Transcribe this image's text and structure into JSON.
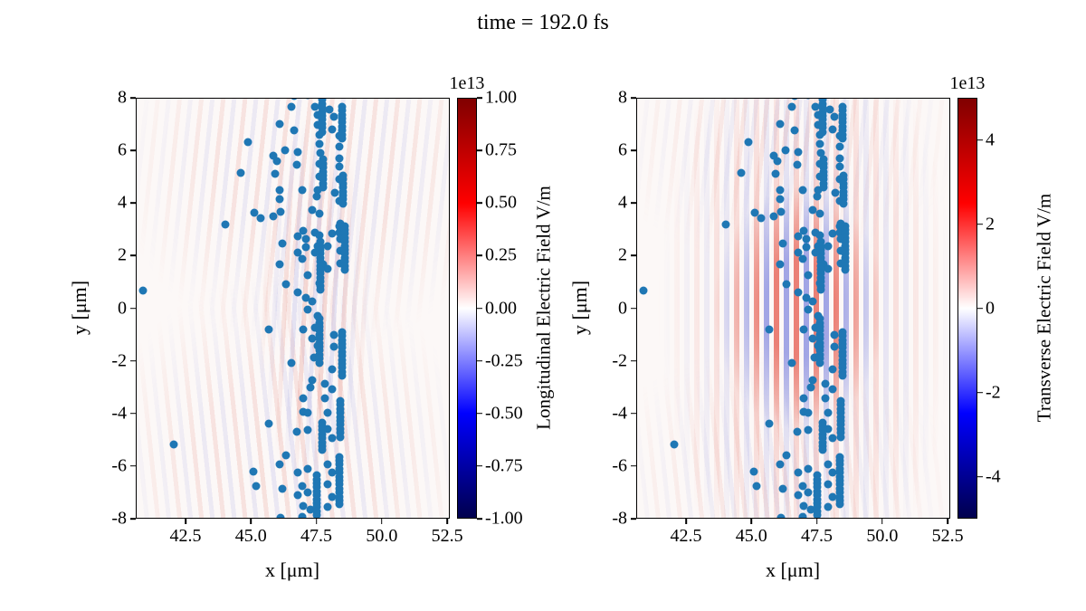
{
  "title": "time = 192.0 fs",
  "colors": {
    "marker": "#1f77b4",
    "colormap_top": "#800000",
    "colormap_positive": "#ff0000",
    "colormap_zero": "#ffffff",
    "colormap_negative": "#0000ff",
    "colormap_bottom": "#00004d"
  },
  "chart_data": {
    "type": "scatter",
    "layout": "1 row x 2 columns",
    "suptitle": "time = 192.0 fs",
    "particles": {
      "name": "macroparticle positions (identical in both panels)",
      "marker_color": "#1f77b4",
      "points": [
        [
          40.95,
          0.65
        ],
        [
          42.1,
          -5.15
        ],
        [
          44.05,
          3.15
        ],
        [
          44.65,
          5.1
        ],
        [
          44.9,
          6.25
        ],
        [
          45.15,
          3.6
        ],
        [
          45.4,
          3.4
        ],
        [
          45.85,
          3.45
        ],
        [
          46.15,
          3.65
        ],
        [
          45.85,
          5.75
        ],
        [
          46.0,
          5.55
        ],
        [
          46.3,
          5.95
        ],
        [
          46.1,
          6.95
        ],
        [
          46.65,
          6.7
        ],
        [
          46.65,
          8.0
        ],
        [
          46.55,
          7.6
        ],
        [
          47.15,
          8.05
        ],
        [
          47.45,
          7.6
        ],
        [
          48.0,
          7.5
        ],
        [
          47.55,
          7.3
        ],
        [
          48.15,
          7.2
        ],
        [
          47.55,
          6.9
        ],
        [
          48.1,
          6.75
        ],
        [
          47.6,
          6.55
        ],
        [
          48.35,
          6.5
        ],
        [
          47.6,
          6.2
        ],
        [
          48.35,
          6.1
        ],
        [
          46.8,
          5.9
        ],
        [
          47.65,
          5.85
        ],
        [
          48.35,
          5.65
        ],
        [
          46.75,
          5.4
        ],
        [
          47.6,
          5.45
        ],
        [
          48.35,
          5.35
        ],
        [
          45.95,
          5.05
        ],
        [
          47.6,
          4.95
        ],
        [
          48.35,
          4.85
        ],
        [
          46.1,
          4.45
        ],
        [
          46.95,
          4.45
        ],
        [
          47.55,
          4.45
        ],
        [
          48.2,
          4.35
        ],
        [
          46.1,
          4.1
        ],
        [
          47.5,
          4.2
        ],
        [
          48.35,
          4.05
        ],
        [
          47.35,
          3.7
        ],
        [
          47.6,
          3.55
        ],
        [
          48.4,
          3.2
        ],
        [
          47.0,
          2.9
        ],
        [
          47.45,
          2.85
        ],
        [
          48.35,
          3.1
        ],
        [
          46.8,
          2.7
        ],
        [
          47.1,
          2.6
        ],
        [
          47.6,
          2.75
        ],
        [
          48.1,
          2.8
        ],
        [
          48.35,
          2.85
        ],
        [
          46.2,
          2.45
        ],
        [
          47.55,
          2.35
        ],
        [
          47.9,
          2.35
        ],
        [
          48.4,
          2.6
        ],
        [
          47.1,
          2.3
        ],
        [
          46.8,
          2.1
        ],
        [
          47.45,
          2.1
        ],
        [
          48.4,
          2.15
        ],
        [
          46.1,
          1.65
        ],
        [
          46.95,
          1.85
        ],
        [
          47.15,
          1.25
        ],
        [
          47.75,
          1.65
        ],
        [
          47.9,
          1.5
        ],
        [
          48.4,
          1.7
        ],
        [
          46.35,
          0.9
        ],
        [
          46.8,
          0.6
        ],
        [
          47.1,
          0.4
        ],
        [
          47.6,
          0.95
        ],
        [
          47.35,
          0.25
        ],
        [
          47.15,
          -0.05
        ],
        [
          47.55,
          -0.3
        ],
        [
          45.7,
          -0.8
        ],
        [
          47.0,
          -0.8
        ],
        [
          47.45,
          -0.75
        ],
        [
          48.15,
          -1.0
        ],
        [
          47.35,
          -1.15
        ],
        [
          47.55,
          -1.4
        ],
        [
          48.15,
          -1.45
        ],
        [
          46.55,
          -2.05
        ],
        [
          47.4,
          -1.85
        ],
        [
          48.1,
          -2.3
        ],
        [
          47.35,
          -2.7
        ],
        [
          47.8,
          -2.85
        ],
        [
          47.25,
          -3.0
        ],
        [
          48.1,
          -3.05
        ],
        [
          47.0,
          -3.4
        ],
        [
          47.8,
          -3.4
        ],
        [
          47.0,
          -3.9
        ],
        [
          47.15,
          -3.95
        ],
        [
          47.9,
          -3.95
        ],
        [
          45.7,
          -4.35
        ],
        [
          46.75,
          -4.65
        ],
        [
          47.15,
          -4.6
        ],
        [
          47.9,
          -4.55
        ],
        [
          48.1,
          -4.9
        ],
        [
          46.35,
          -5.55
        ],
        [
          46.1,
          -5.9
        ],
        [
          47.15,
          -6.05
        ],
        [
          47.9,
          -5.9
        ],
        [
          45.1,
          -6.15
        ],
        [
          46.8,
          -6.2
        ],
        [
          48.1,
          -6.2
        ],
        [
          45.2,
          -6.7
        ],
        [
          46.2,
          -6.8
        ],
        [
          46.95,
          -6.7
        ],
        [
          47.9,
          -6.65
        ],
        [
          46.8,
          -7.05
        ],
        [
          47.15,
          -6.95
        ],
        [
          48.1,
          -7.1
        ],
        [
          47.0,
          -7.45
        ],
        [
          47.25,
          -7.6
        ],
        [
          47.9,
          -7.5
        ],
        [
          46.95,
          -7.85
        ],
        [
          46.15,
          -7.9
        ],
        [
          48.45,
          7.6
        ],
        [
          48.45,
          7.45
        ],
        [
          48.45,
          7.3
        ],
        [
          48.45,
          7.15
        ],
        [
          48.45,
          7.0
        ],
        [
          48.45,
          6.85
        ],
        [
          48.45,
          6.7
        ],
        [
          48.45,
          6.55
        ],
        [
          48.45,
          6.4
        ],
        [
          48.5,
          5.0
        ],
        [
          48.5,
          4.85
        ],
        [
          48.5,
          4.7
        ],
        [
          48.5,
          4.55
        ],
        [
          48.5,
          4.4
        ],
        [
          48.5,
          4.25
        ],
        [
          48.5,
          4.1
        ],
        [
          48.5,
          3.95
        ],
        [
          48.55,
          3.1
        ],
        [
          48.55,
          2.95
        ],
        [
          48.55,
          2.8
        ],
        [
          48.55,
          2.65
        ],
        [
          48.55,
          2.5
        ],
        [
          48.55,
          2.35
        ],
        [
          48.55,
          2.2
        ],
        [
          48.55,
          2.05
        ],
        [
          48.55,
          1.9
        ],
        [
          48.55,
          1.75
        ],
        [
          48.55,
          1.6
        ],
        [
          48.55,
          1.45
        ],
        [
          48.45,
          -0.9
        ],
        [
          48.45,
          -1.05
        ],
        [
          48.45,
          -1.2
        ],
        [
          48.45,
          -1.35
        ],
        [
          48.45,
          -1.5
        ],
        [
          48.45,
          -1.65
        ],
        [
          48.45,
          -1.8
        ],
        [
          48.45,
          -1.95
        ],
        [
          48.45,
          -2.1
        ],
        [
          48.45,
          -2.25
        ],
        [
          48.45,
          -2.4
        ],
        [
          48.45,
          -2.55
        ],
        [
          48.4,
          -3.5
        ],
        [
          48.4,
          -3.65
        ],
        [
          48.4,
          -3.8
        ],
        [
          48.4,
          -3.95
        ],
        [
          48.4,
          -4.1
        ],
        [
          48.4,
          -4.25
        ],
        [
          48.4,
          -4.4
        ],
        [
          48.4,
          -4.55
        ],
        [
          48.4,
          -4.7
        ],
        [
          48.4,
          -4.85
        ],
        [
          48.35,
          -5.6
        ],
        [
          48.35,
          -5.75
        ],
        [
          48.35,
          -5.9
        ],
        [
          48.35,
          -6.05
        ],
        [
          48.35,
          -6.2
        ],
        [
          48.35,
          -6.35
        ],
        [
          48.35,
          -6.5
        ],
        [
          48.35,
          -6.65
        ],
        [
          48.35,
          -6.8
        ],
        [
          48.35,
          -6.95
        ],
        [
          48.35,
          -7.1
        ],
        [
          48.35,
          -7.25
        ],
        [
          48.35,
          -7.4
        ],
        [
          47.7,
          8.0
        ],
        [
          47.7,
          7.85
        ],
        [
          47.7,
          7.7
        ],
        [
          47.7,
          7.55
        ],
        [
          47.7,
          7.4
        ],
        [
          47.7,
          7.25
        ],
        [
          47.7,
          7.1
        ],
        [
          47.7,
          6.95
        ],
        [
          47.7,
          6.8
        ],
        [
          47.7,
          6.65
        ],
        [
          47.75,
          5.6
        ],
        [
          47.75,
          5.45
        ],
        [
          47.75,
          5.3
        ],
        [
          47.75,
          5.15
        ],
        [
          47.75,
          5.0
        ],
        [
          47.75,
          4.85
        ],
        [
          47.75,
          4.7
        ],
        [
          47.75,
          4.55
        ],
        [
          47.65,
          2.5
        ],
        [
          47.65,
          2.35
        ],
        [
          47.65,
          2.2
        ],
        [
          47.65,
          2.05
        ],
        [
          47.65,
          1.9
        ],
        [
          47.65,
          1.75
        ],
        [
          47.65,
          1.6
        ],
        [
          47.65,
          1.45
        ],
        [
          47.65,
          1.3
        ],
        [
          47.65,
          1.15
        ],
        [
          47.65,
          1.0
        ],
        [
          47.65,
          0.85
        ],
        [
          47.65,
          0.7
        ],
        [
          47.6,
          -0.4
        ],
        [
          47.6,
          -0.55
        ],
        [
          47.6,
          -0.7
        ],
        [
          47.6,
          -0.85
        ],
        [
          47.6,
          -1.0
        ],
        [
          47.6,
          -1.15
        ],
        [
          47.6,
          -1.3
        ],
        [
          47.6,
          -1.45
        ],
        [
          47.6,
          -1.6
        ],
        [
          47.6,
          -1.75
        ],
        [
          47.6,
          -1.9
        ],
        [
          47.6,
          -2.05
        ],
        [
          47.7,
          -4.3
        ],
        [
          47.7,
          -4.45
        ],
        [
          47.7,
          -4.6
        ],
        [
          47.7,
          -4.75
        ],
        [
          47.7,
          -4.9
        ],
        [
          47.7,
          -5.05
        ],
        [
          47.7,
          -5.2
        ],
        [
          47.7,
          -5.35
        ],
        [
          47.5,
          -6.3
        ],
        [
          47.5,
          -6.45
        ],
        [
          47.5,
          -6.6
        ],
        [
          47.5,
          -6.75
        ],
        [
          47.5,
          -6.9
        ],
        [
          47.5,
          -7.05
        ],
        [
          47.5,
          -7.2
        ],
        [
          47.5,
          -7.35
        ],
        [
          47.5,
          -7.5
        ],
        [
          47.5,
          -7.65
        ],
        [
          47.5,
          -7.8
        ]
      ]
    },
    "subplots": [
      {
        "field": "longitudinal",
        "xlabel": "x [μm]",
        "ylabel": "y [μm]",
        "xlim": [
          40.6,
          52.6
        ],
        "ylim": [
          -8,
          8
        ],
        "xtick_labels": [
          "42.5",
          "45.0",
          "47.5",
          "50.0",
          "52.5"
        ],
        "xtick_values": [
          42.5,
          45.0,
          47.5,
          50.0,
          52.5
        ],
        "ytick_labels": [
          "8",
          "6",
          "4",
          "2",
          "0",
          "-2",
          "-4",
          "-6",
          "-8"
        ],
        "ytick_values": [
          8,
          6,
          4,
          2,
          0,
          -2,
          -4,
          -6,
          -8
        ],
        "field_pattern": "faint oblique plasma-wake stripes, strongest near particle band",
        "colorbar": {
          "label": "Longitudinal Electric Field V/m",
          "offset_text": "1e13",
          "colormap": "seismic",
          "vmin": -1.0,
          "vmax": 1.0,
          "tick_labels": [
            "1.00",
            "0.75",
            "0.50",
            "0.25",
            "0.00",
            "-0.25",
            "-0.50",
            "-0.75",
            "-1.00"
          ],
          "tick_values": [
            1.0,
            0.75,
            0.5,
            0.25,
            0.0,
            -0.25,
            -0.5,
            -0.75,
            -1.0
          ]
        }
      },
      {
        "field": "transverse",
        "xlabel": "x [μm]",
        "ylabel": "y [μm]",
        "xlim": [
          40.6,
          52.6
        ],
        "ylim": [
          -8,
          8
        ],
        "xtick_labels": [
          "42.5",
          "45.0",
          "47.5",
          "50.0",
          "52.5"
        ],
        "xtick_values": [
          42.5,
          45.0,
          47.5,
          50.0,
          52.5
        ],
        "ytick_labels": [
          "8",
          "6",
          "4",
          "2",
          "0",
          "-2",
          "-4",
          "-6",
          "-8"
        ],
        "ytick_values": [
          8,
          6,
          4,
          2,
          0,
          -2,
          -4,
          -6,
          -8
        ],
        "field_pattern": "strong vertical laser-pulse stripes centered near x=47, y=0",
        "colorbar": {
          "label": "Transverse Electric Field V/m",
          "offset_text": "1e13",
          "colormap": "seismic",
          "vmin": -5.0,
          "vmax": 5.0,
          "tick_labels": [
            "4",
            "2",
            "0",
            "-2",
            "-4"
          ],
          "tick_values": [
            4,
            2,
            0,
            -2,
            -4
          ]
        }
      }
    ]
  }
}
